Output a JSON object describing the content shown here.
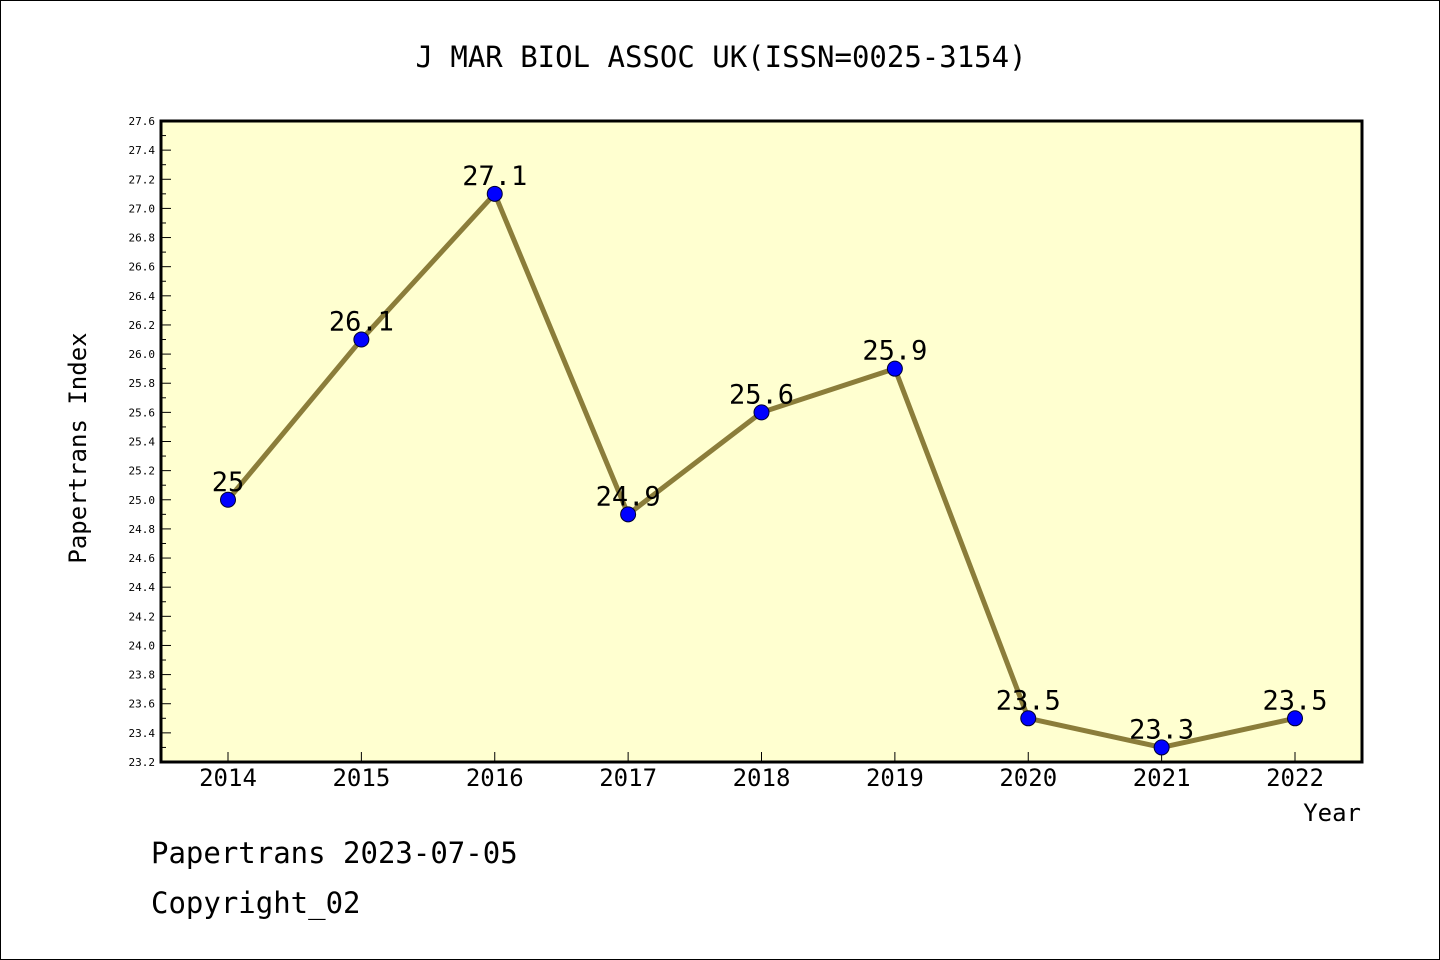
{
  "chart_data": {
    "type": "line",
    "title": "J MAR BIOL ASSOC UK(ISSN=0025-3154)",
    "xlabel": "Year",
    "ylabel": "Papertrans Index",
    "x": [
      "2014",
      "2015",
      "2016",
      "2017",
      "2018",
      "2019",
      "2020",
      "2021",
      "2022"
    ],
    "values": [
      25,
      26.1,
      27.1,
      24.9,
      25.6,
      25.9,
      23.5,
      23.3,
      23.5
    ],
    "data_labels": [
      "25",
      "26.1",
      "27.1",
      "24.9",
      "25.6",
      "25.9",
      "23.5",
      "23.3",
      "23.5"
    ],
    "ylim": [
      23.2,
      27.6
    ],
    "yticks": [
      "23.2",
      "23.4",
      "23.6",
      "23.8",
      "24.0",
      "24.2",
      "24.4",
      "24.6",
      "24.8",
      "25.0",
      "25.2",
      "25.4",
      "25.6",
      "25.8",
      "26.0",
      "26.2",
      "26.4",
      "26.6",
      "26.8",
      "27.0",
      "27.2",
      "27.4",
      "27.6"
    ],
    "grid": false,
    "colors": {
      "plot_background": "#ffffd0",
      "line": "#8b7d3a",
      "marker": "#0000ff"
    }
  },
  "footer": {
    "line1": "Papertrans 2023-07-05",
    "line2": "Copyright_02"
  }
}
